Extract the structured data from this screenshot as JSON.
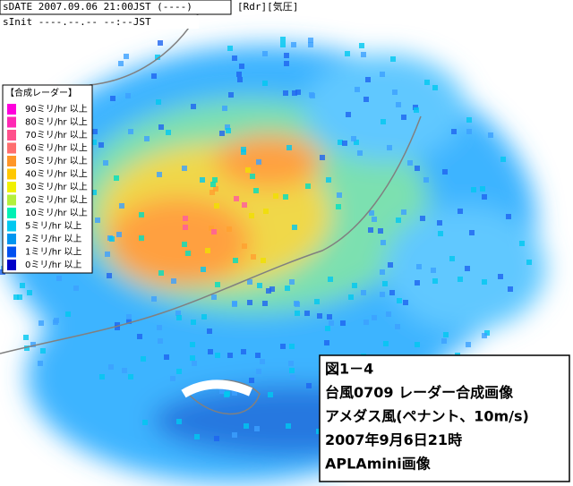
{
  "header": {
    "date": "sDATE 2007.09.06 21:00JST (----)",
    "tabs": "[Rdr][気圧]",
    "init": "sInit ----.--.-- --:--JST"
  },
  "legend": {
    "title": "【合成レーダー】",
    "items": [
      {
        "label": "90ミリ/hr 以上",
        "color": "#ff00dc"
      },
      {
        "label": "80ミリ/hr 以上",
        "color": "#ff28b4"
      },
      {
        "label": "70ミリ/hr 以上",
        "color": "#ff508c"
      },
      {
        "label": "60ミリ/hr 以上",
        "color": "#ff6e6e"
      },
      {
        "label": "50ミリ/hr 以上",
        "color": "#ff9628"
      },
      {
        "label": "40ミリ/hr 以上",
        "color": "#ffc800"
      },
      {
        "label": "30ミリ/hr 以上",
        "color": "#f0f000"
      },
      {
        "label": "20ミリ/hr 以上",
        "color": "#b4f03c"
      },
      {
        "label": "10ミリ/hr 以上",
        "color": "#00f0b4"
      },
      {
        "label": "5ミリ/hr 以上",
        "color": "#00c8f0"
      },
      {
        "label": "2ミリ/hr 以上",
        "color": "#0096f0"
      },
      {
        "label": "1ミリ/hr 以上",
        "color": "#0050f0"
      },
      {
        "label": "0ミリ/hr 以上",
        "color": "#0000c8"
      }
    ]
  },
  "caption": {
    "lines": [
      "図1－4",
      "台風0709 レーダー合成画像",
      "アメダス風(ペナント、10m/s)",
      "2007年9月6日21時",
      "APLAmini画像"
    ]
  }
}
